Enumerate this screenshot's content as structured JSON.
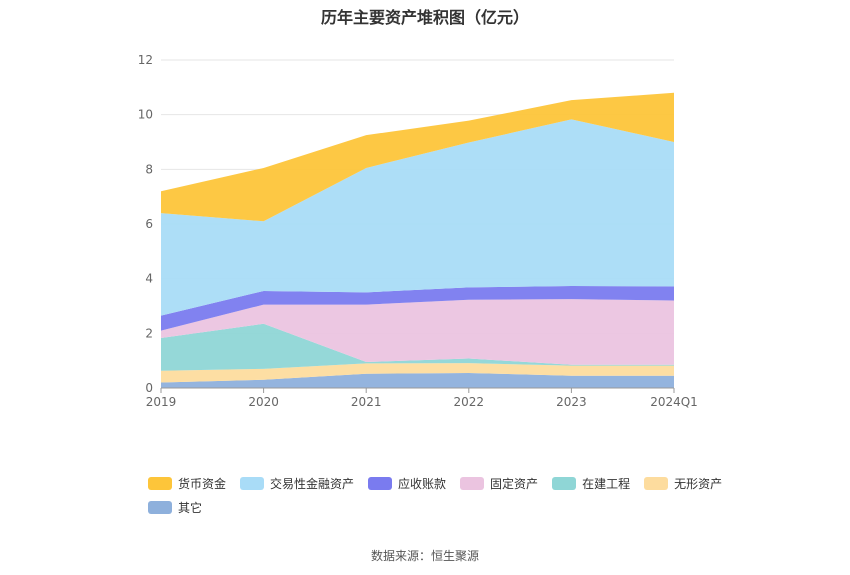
{
  "chart_data": {
    "type": "area",
    "stacked": true,
    "title": "历年主要资产堆积图（亿元）",
    "categories": [
      "2019",
      "2020",
      "2021",
      "2022",
      "2023",
      "2024Q1"
    ],
    "ylim": [
      0,
      12
    ],
    "yticks": [
      0,
      2,
      4,
      6,
      8,
      10,
      12
    ],
    "grid": true,
    "legend_position": "bottom",
    "series": [
      {
        "name": "其它",
        "color": "#8eb0dc",
        "values": [
          0.2,
          0.3,
          0.52,
          0.55,
          0.45,
          0.45
        ]
      },
      {
        "name": "无形资产",
        "color": "#fddc9e",
        "values": [
          0.43,
          0.4,
          0.38,
          0.36,
          0.37,
          0.37
        ]
      },
      {
        "name": "在建工程",
        "color": "#8fd6d6",
        "values": [
          1.2,
          1.65,
          0.05,
          0.17,
          0.03,
          0.03
        ]
      },
      {
        "name": "固定资产",
        "color": "#ebc4e0",
        "values": [
          0.27,
          0.7,
          2.1,
          2.15,
          2.4,
          2.35
        ]
      },
      {
        "name": "应收账款",
        "color": "#7a7bef",
        "values": [
          0.55,
          0.5,
          0.45,
          0.45,
          0.48,
          0.52
        ]
      },
      {
        "name": "交易性金融资产",
        "color": "#a9dcf7",
        "values": [
          3.75,
          2.55,
          4.55,
          5.3,
          6.1,
          5.28
        ]
      },
      {
        "name": "货币资金",
        "color": "#fdc53a",
        "values": [
          0.8,
          1.95,
          1.2,
          0.8,
          0.7,
          1.8
        ]
      }
    ],
    "legend_order": [
      "货币资金",
      "交易性金融资产",
      "应收账款",
      "固定资产",
      "在建工程",
      "无形资产",
      "其它"
    ]
  },
  "source_text": "数据来源：恒生聚源"
}
